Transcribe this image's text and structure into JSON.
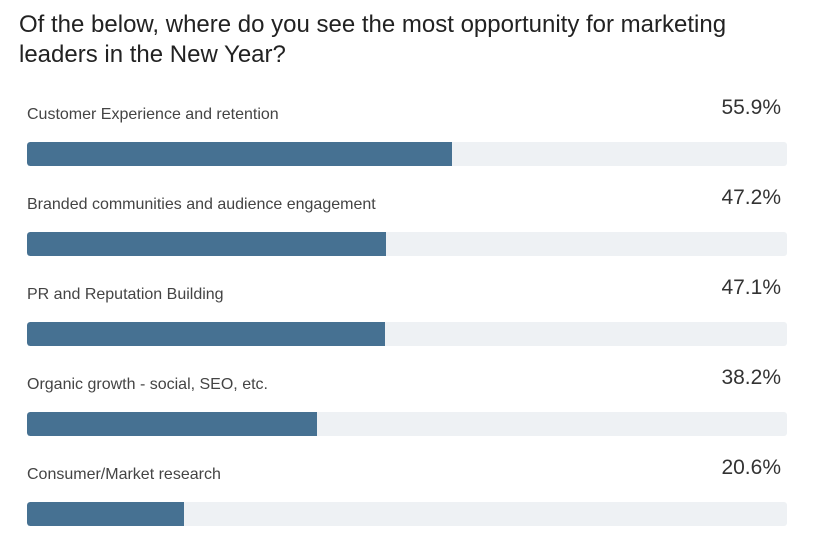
{
  "question": "Of the below, where do you see the most opportunity for marketing leaders in the New Year?",
  "colors": {
    "bar_fill": "#467192",
    "bar_track": "#eef1f4"
  },
  "chart_data": {
    "type": "bar",
    "orientation": "horizontal",
    "title": "Of the below, where do you see the most opportunity for marketing leaders in the New Year?",
    "categories": [
      "Customer Experience and retention",
      "Branded communities and audience engagement",
      "PR and Reputation Building",
      "Organic growth - social, SEO, etc.",
      "Consumer/Market research"
    ],
    "values": [
      55.9,
      47.2,
      47.1,
      38.2,
      20.6
    ],
    "value_labels": [
      "55.9%",
      "47.2%",
      "47.1%",
      "38.2%",
      "20.6%"
    ],
    "xlim": [
      0,
      100
    ],
    "unit": "%"
  }
}
